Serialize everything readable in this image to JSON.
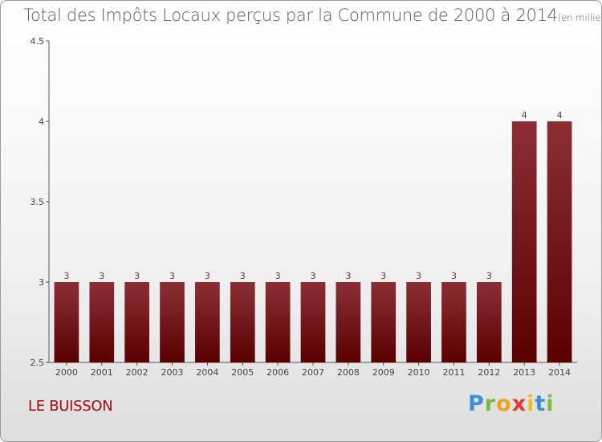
{
  "header": {
    "title": "Total des Impôts Locaux perçus par la Commune de 2000 à 2014",
    "unit": "(en milliers d'€)"
  },
  "footer": {
    "commune": "LE BUISSON",
    "logo": [
      "P",
      "r",
      "o",
      "x",
      "i",
      "t",
      "i"
    ],
    "logo_colors": [
      "#3d8fd6",
      "#7cbc3a",
      "#f0a020",
      "#e8392e",
      "#f0c020",
      "#3d8fd6",
      "#7cbc3a"
    ]
  },
  "chart_data": {
    "type": "bar",
    "categories": [
      "2000",
      "2001",
      "2002",
      "2003",
      "2004",
      "2005",
      "2006",
      "2007",
      "2008",
      "2009",
      "2010",
      "2011",
      "2012",
      "2013",
      "2014"
    ],
    "values": [
      3,
      3,
      3,
      3,
      3,
      3,
      3,
      3,
      3,
      3,
      3,
      3,
      3,
      4,
      4
    ],
    "data_labels": [
      "3",
      "3",
      "3",
      "3",
      "3",
      "3",
      "3",
      "3",
      "3",
      "3",
      "3",
      "3",
      "3",
      "4",
      "4"
    ],
    "ylim": [
      2.5,
      4.5
    ],
    "yticks": [
      2.5,
      3,
      3.5,
      4,
      4.5
    ],
    "ytick_labels": [
      "2.5",
      "3",
      "3.5",
      "4",
      "4.5"
    ],
    "bar_color_top": "#8b2f35",
    "bar_color_bottom": "#5a0000",
    "grid": false
  }
}
